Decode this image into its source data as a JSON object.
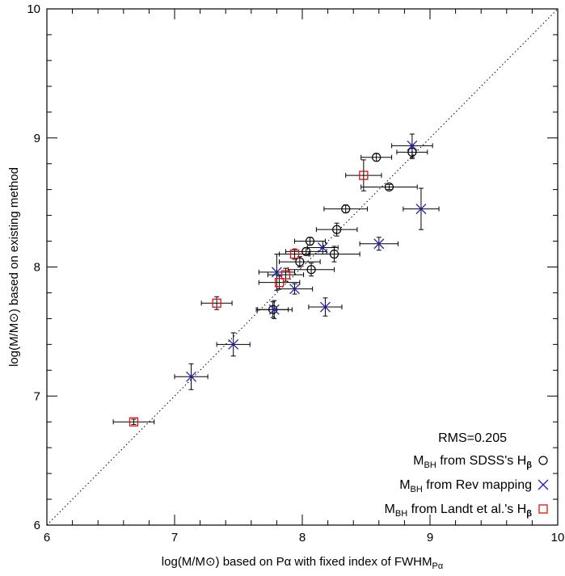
{
  "chart_data": {
    "type": "scatter",
    "xlabel": "log(M/M⊙) based on Pα with fixed index of FWHM",
    "xlabel_sub": "Pα",
    "ylabel": "log(M/M⊙) based on existing method",
    "xlim": [
      6,
      10
    ],
    "ylim": [
      6,
      10
    ],
    "x_ticks": [
      "6",
      "7",
      "8",
      "9",
      "10"
    ],
    "y_ticks": [
      "6",
      "7",
      "8",
      "9",
      "10"
    ],
    "reference_line": {
      "style": "dotted",
      "x": [
        6,
        10
      ],
      "y": [
        6,
        10
      ]
    },
    "annotation": "RMS=0.205",
    "legend_position": "bottom-right",
    "series": [
      {
        "name_main": "M",
        "name_sub": "BH",
        "name_rest": " from SDSS's H",
        "name_greek": "β",
        "marker": "circle",
        "color": "#000000",
        "points": [
          {
            "x": 8.86,
            "y": 8.89,
            "xerr": 0.12,
            "yerr": 0.05
          },
          {
            "x": 8.58,
            "y": 8.85,
            "xerr": 0.12,
            "yerr": 0.03
          },
          {
            "x": 8.68,
            "y": 8.62,
            "xerr": 0.22,
            "yerr": 0.02
          },
          {
            "x": 8.34,
            "y": 8.45,
            "xerr": 0.17,
            "yerr": 0.03
          },
          {
            "x": 8.27,
            "y": 8.29,
            "xerr": 0.16,
            "yerr": 0.05
          },
          {
            "x": 8.06,
            "y": 8.2,
            "xerr": 0.12,
            "yerr": 0.03
          },
          {
            "x": 8.03,
            "y": 8.12,
            "xerr": 0.16,
            "yerr": 0.03
          },
          {
            "x": 8.25,
            "y": 8.1,
            "xerr": 0.2,
            "yerr": 0.06
          },
          {
            "x": 7.98,
            "y": 8.04,
            "xerr": 0.16,
            "yerr": 0.04
          },
          {
            "x": 8.07,
            "y": 7.98,
            "xerr": 0.18,
            "yerr": 0.05
          },
          {
            "x": 7.77,
            "y": 7.67,
            "xerr": 0.12,
            "yerr": 0.06
          }
        ]
      },
      {
        "name_main": "M",
        "name_sub": "BH",
        "name_rest": " from Rev mapping",
        "name_greek": "",
        "marker": "x",
        "color": "#2222bb",
        "points": [
          {
            "x": 8.86,
            "y": 8.94,
            "xerr": 0.16,
            "yerr": 0.09
          },
          {
            "x": 8.93,
            "y": 8.45,
            "xerr": 0.14,
            "yerr": 0.16
          },
          {
            "x": 8.6,
            "y": 8.18,
            "xerr": 0.15,
            "yerr": 0.05
          },
          {
            "x": 8.16,
            "y": 8.15,
            "xerr": 0.12,
            "yerr": 0.05
          },
          {
            "x": 7.8,
            "y": 7.96,
            "xerr": 0.14,
            "yerr": 0.14
          },
          {
            "x": 7.94,
            "y": 7.83,
            "xerr": 0.14,
            "yerr": 0.04
          },
          {
            "x": 7.78,
            "y": 7.67,
            "xerr": 0.14,
            "yerr": 0.07
          },
          {
            "x": 8.18,
            "y": 7.69,
            "xerr": 0.13,
            "yerr": 0.07
          },
          {
            "x": 7.46,
            "y": 7.4,
            "xerr": 0.13,
            "yerr": 0.09
          },
          {
            "x": 7.13,
            "y": 7.15,
            "xerr": 0.13,
            "yerr": 0.1
          }
        ]
      },
      {
        "name_main": "M",
        "name_sub": "BH",
        "name_rest": " from Landt et al.'s H",
        "name_greek": "β",
        "marker": "square",
        "color": "#dd1111",
        "points": [
          {
            "x": 8.48,
            "y": 8.71,
            "xerr": 0.14,
            "yerr": 0.12
          },
          {
            "x": 7.94,
            "y": 8.1,
            "xerr": 0.12,
            "yerr": 0.04
          },
          {
            "x": 7.87,
            "y": 7.94,
            "xerr": 0.14,
            "yerr": 0.05
          },
          {
            "x": 7.82,
            "y": 7.88,
            "xerr": 0.16,
            "yerr": 0.05
          },
          {
            "x": 7.33,
            "y": 7.72,
            "xerr": 0.12,
            "yerr": 0.05
          },
          {
            "x": 6.68,
            "y": 6.8,
            "xerr": 0.16,
            "yerr": 0.02
          }
        ]
      }
    ]
  }
}
